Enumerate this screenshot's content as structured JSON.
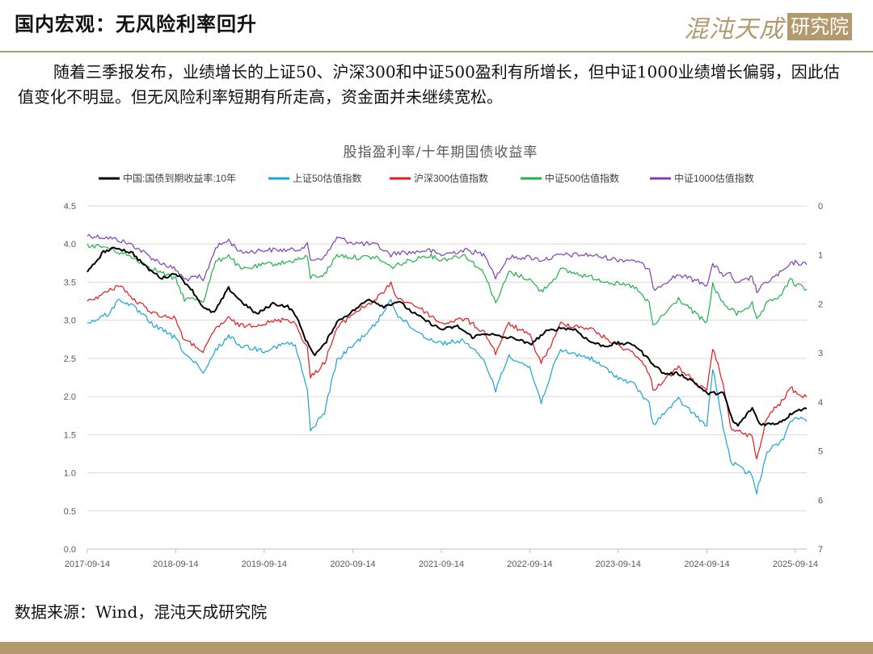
{
  "header": {
    "title": "国内宏观：无风险利率回升",
    "logo_text": "混沌天成",
    "logo_box_text": "研究院"
  },
  "intro_text": "随着三季报发布，业绩增长的上证50、沪深300和中证500盈利有所增长，但中证1000业绩增长偏弱，因此估值变化不明显。但无风险利率短期有所走高，资金面并未继续宽松。",
  "source_text": "数据来源：Wind，混沌天成研究院",
  "chart_data": {
    "type": "line",
    "title": "股指盈利率/十年期国债收益率",
    "x_tick_labels": [
      "2017-09-14",
      "2018-09-14",
      "2019-09-14",
      "2020-09-14",
      "2021-09-14",
      "2022-09-14",
      "2023-09-14",
      "2024-09-14",
      "2025-09-14"
    ],
    "x_range": [
      "2017-09-14",
      "2025-10-31"
    ],
    "left_axis": {
      "min": 0,
      "max": 4.5,
      "ticks": [
        "0.0",
        "0.5",
        "1.0",
        "1.5",
        "2.0",
        "2.5",
        "3.0",
        "3.5",
        "4.0",
        "4.5"
      ]
    },
    "right_axis": {
      "min": 0,
      "max": 7,
      "reversed": true,
      "ticks": [
        "0",
        "1",
        "2",
        "3",
        "4",
        "5",
        "6",
        "7"
      ]
    },
    "grid": true,
    "legend_position": "top",
    "series": [
      {
        "name": "中国:国债到期收益率:10年",
        "color": "#000000",
        "axis": "left",
        "points": [
          [
            "2017-09-14",
            3.62
          ],
          [
            "2017-11-20",
            3.9
          ],
          [
            "2018-01-15",
            3.95
          ],
          [
            "2018-03-20",
            3.88
          ],
          [
            "2018-05-20",
            3.68
          ],
          [
            "2018-07-20",
            3.55
          ],
          [
            "2018-09-14",
            3.62
          ],
          [
            "2018-11-15",
            3.42
          ],
          [
            "2019-01-10",
            3.15
          ],
          [
            "2019-02-20",
            3.1
          ],
          [
            "2019-04-20",
            3.42
          ],
          [
            "2019-06-10",
            3.25
          ],
          [
            "2019-08-15",
            3.08
          ],
          [
            "2019-10-20",
            3.22
          ],
          [
            "2019-12-20",
            3.18
          ],
          [
            "2020-01-20",
            3.08
          ],
          [
            "2020-03-10",
            2.7
          ],
          [
            "2020-04-10",
            2.55
          ],
          [
            "2020-05-20",
            2.68
          ],
          [
            "2020-07-10",
            2.98
          ],
          [
            "2020-09-14",
            3.12
          ],
          [
            "2020-11-20",
            3.28
          ],
          [
            "2021-01-20",
            3.18
          ],
          [
            "2021-03-20",
            3.25
          ],
          [
            "2021-05-20",
            3.1
          ],
          [
            "2021-07-20",
            2.98
          ],
          [
            "2021-09-14",
            2.88
          ],
          [
            "2021-11-20",
            2.92
          ],
          [
            "2022-01-20",
            2.78
          ],
          [
            "2022-03-20",
            2.83
          ],
          [
            "2022-05-20",
            2.78
          ],
          [
            "2022-07-20",
            2.76
          ],
          [
            "2022-09-14",
            2.68
          ],
          [
            "2022-11-20",
            2.85
          ],
          [
            "2023-01-20",
            2.9
          ],
          [
            "2023-03-20",
            2.88
          ],
          [
            "2023-05-20",
            2.72
          ],
          [
            "2023-07-20",
            2.66
          ],
          [
            "2023-09-14",
            2.7
          ],
          [
            "2023-11-20",
            2.68
          ],
          [
            "2024-01-20",
            2.48
          ],
          [
            "2024-03-20",
            2.3
          ],
          [
            "2024-05-20",
            2.3
          ],
          [
            "2024-07-20",
            2.2
          ],
          [
            "2024-09-14",
            2.04
          ],
          [
            "2024-11-20",
            2.05
          ],
          [
            "2024-12-31",
            1.67
          ],
          [
            "2025-01-20",
            1.62
          ],
          [
            "2025-03-20",
            1.85
          ],
          [
            "2025-04-20",
            1.64
          ],
          [
            "2025-06-20",
            1.64
          ],
          [
            "2025-08-01",
            1.7
          ],
          [
            "2025-09-14",
            1.82
          ],
          [
            "2025-10-31",
            1.84
          ]
        ]
      },
      {
        "name": "上证50估值指数",
        "color": "#1aa3d6",
        "axis": "right",
        "points": [
          [
            "2017-09-14",
            2.4
          ],
          [
            "2017-12-10",
            2.2
          ],
          [
            "2018-01-25",
            1.9
          ],
          [
            "2018-03-20",
            2.05
          ],
          [
            "2018-06-20",
            2.45
          ],
          [
            "2018-09-14",
            2.7
          ],
          [
            "2018-10-20",
            3.0
          ],
          [
            "2018-12-20",
            3.3
          ],
          [
            "2019-01-05",
            3.45
          ],
          [
            "2019-02-25",
            2.95
          ],
          [
            "2019-04-20",
            2.65
          ],
          [
            "2019-06-10",
            2.85
          ],
          [
            "2019-09-14",
            2.95
          ],
          [
            "2019-12-20",
            2.8
          ],
          [
            "2020-01-20",
            2.85
          ],
          [
            "2020-03-10",
            3.75
          ],
          [
            "2020-03-23",
            4.6
          ],
          [
            "2020-05-20",
            4.2
          ],
          [
            "2020-07-10",
            3.15
          ],
          [
            "2020-09-14",
            2.85
          ],
          [
            "2020-12-20",
            2.4
          ],
          [
            "2021-02-18",
            1.9
          ],
          [
            "2021-03-20",
            2.25
          ],
          [
            "2021-05-20",
            2.5
          ],
          [
            "2021-07-20",
            2.7
          ],
          [
            "2021-09-14",
            2.8
          ],
          [
            "2021-12-20",
            2.75
          ],
          [
            "2022-03-15",
            3.2
          ],
          [
            "2022-04-26",
            3.75
          ],
          [
            "2022-06-20",
            3.05
          ],
          [
            "2022-09-14",
            3.3
          ],
          [
            "2022-10-31",
            4.0
          ],
          [
            "2022-12-20",
            3.3
          ],
          [
            "2023-01-20",
            2.95
          ],
          [
            "2023-05-20",
            3.1
          ],
          [
            "2023-09-14",
            3.5
          ],
          [
            "2023-11-20",
            3.65
          ],
          [
            "2024-01-20",
            4.05
          ],
          [
            "2024-02-05",
            4.45
          ],
          [
            "2024-05-20",
            3.95
          ],
          [
            "2024-09-14",
            4.5
          ],
          [
            "2024-10-08",
            3.3
          ],
          [
            "2024-11-20",
            4.5
          ],
          [
            "2024-12-20",
            5.2
          ],
          [
            "2025-01-15",
            5.3
          ],
          [
            "2025-03-20",
            5.5
          ],
          [
            "2025-04-08",
            5.85
          ],
          [
            "2025-05-20",
            5.0
          ],
          [
            "2025-07-20",
            4.8
          ],
          [
            "2025-08-25",
            4.4
          ],
          [
            "2025-09-14",
            4.3
          ],
          [
            "2025-10-31",
            4.4
          ]
        ]
      },
      {
        "name": "沪深300估值指数",
        "color": "#e31a1c",
        "axis": "right",
        "points": [
          [
            "2017-09-14",
            1.95
          ],
          [
            "2017-12-10",
            1.75
          ],
          [
            "2018-01-25",
            1.6
          ],
          [
            "2018-03-20",
            1.9
          ],
          [
            "2018-06-20",
            2.2
          ],
          [
            "2018-09-14",
            2.3
          ],
          [
            "2018-10-20",
            2.75
          ],
          [
            "2018-12-20",
            2.9
          ],
          [
            "2019-01-05",
            3.0
          ],
          [
            "2019-02-25",
            2.5
          ],
          [
            "2019-04-20",
            2.3
          ],
          [
            "2019-06-10",
            2.45
          ],
          [
            "2019-09-14",
            2.4
          ],
          [
            "2019-12-20",
            2.3
          ],
          [
            "2020-01-20",
            2.4
          ],
          [
            "2020-03-10",
            2.9
          ],
          [
            "2020-03-23",
            3.5
          ],
          [
            "2020-05-20",
            3.2
          ],
          [
            "2020-07-10",
            2.5
          ],
          [
            "2020-09-14",
            2.2
          ],
          [
            "2020-12-20",
            1.9
          ],
          [
            "2021-02-18",
            1.6
          ],
          [
            "2021-03-20",
            1.9
          ],
          [
            "2021-05-20",
            2.0
          ],
          [
            "2021-07-20",
            2.2
          ],
          [
            "2021-09-14",
            2.4
          ],
          [
            "2021-12-20",
            2.3
          ],
          [
            "2022-03-15",
            2.6
          ],
          [
            "2022-04-26",
            3.0
          ],
          [
            "2022-06-20",
            2.4
          ],
          [
            "2022-09-14",
            2.65
          ],
          [
            "2022-10-31",
            3.2
          ],
          [
            "2022-12-20",
            2.75
          ],
          [
            "2023-01-20",
            2.4
          ],
          [
            "2023-05-20",
            2.5
          ],
          [
            "2023-09-14",
            2.85
          ],
          [
            "2023-11-20",
            3.0
          ],
          [
            "2024-01-20",
            3.4
          ],
          [
            "2024-02-05",
            3.75
          ],
          [
            "2024-05-20",
            3.3
          ],
          [
            "2024-09-14",
            3.8
          ],
          [
            "2024-10-08",
            2.9
          ],
          [
            "2024-11-20",
            3.6
          ],
          [
            "2024-12-20",
            4.5
          ],
          [
            "2025-01-15",
            4.6
          ],
          [
            "2025-03-20",
            4.7
          ],
          [
            "2025-04-08",
            5.2
          ],
          [
            "2025-05-20",
            4.3
          ],
          [
            "2025-07-20",
            4.0
          ],
          [
            "2025-08-25",
            3.7
          ],
          [
            "2025-09-14",
            3.8
          ],
          [
            "2025-10-31",
            3.9
          ]
        ]
      },
      {
        "name": "中证500估值指数",
        "color": "#1fb24a",
        "axis": "right",
        "points": [
          [
            "2017-09-14",
            0.8
          ],
          [
            "2017-12-10",
            0.85
          ],
          [
            "2018-01-25",
            0.95
          ],
          [
            "2018-03-20",
            1.05
          ],
          [
            "2018-06-20",
            1.3
          ],
          [
            "2018-09-14",
            1.5
          ],
          [
            "2018-10-20",
            1.9
          ],
          [
            "2018-12-20",
            1.9
          ],
          [
            "2019-01-05",
            1.95
          ],
          [
            "2019-02-25",
            1.15
          ],
          [
            "2019-04-20",
            1.0
          ],
          [
            "2019-06-10",
            1.3
          ],
          [
            "2019-09-14",
            1.2
          ],
          [
            "2019-12-20",
            1.15
          ],
          [
            "2020-01-20",
            1.1
          ],
          [
            "2020-03-10",
            1.05
          ],
          [
            "2020-03-23",
            1.45
          ],
          [
            "2020-05-20",
            1.4
          ],
          [
            "2020-07-10",
            1.0
          ],
          [
            "2020-09-14",
            1.05
          ],
          [
            "2020-12-20",
            1.05
          ],
          [
            "2021-02-18",
            1.25
          ],
          [
            "2021-03-20",
            1.2
          ],
          [
            "2021-05-20",
            1.1
          ],
          [
            "2021-07-20",
            1.0
          ],
          [
            "2021-09-14",
            1.1
          ],
          [
            "2021-12-20",
            1.0
          ],
          [
            "2022-03-15",
            1.4
          ],
          [
            "2022-04-26",
            2.0
          ],
          [
            "2022-06-20",
            1.35
          ],
          [
            "2022-09-14",
            1.5
          ],
          [
            "2022-10-31",
            1.75
          ],
          [
            "2022-12-20",
            1.5
          ],
          [
            "2023-01-20",
            1.3
          ],
          [
            "2023-05-20",
            1.45
          ],
          [
            "2023-09-14",
            1.6
          ],
          [
            "2023-11-20",
            1.65
          ],
          [
            "2024-01-20",
            2.0
          ],
          [
            "2024-02-05",
            2.45
          ],
          [
            "2024-05-20",
            1.9
          ],
          [
            "2024-09-14",
            2.4
          ],
          [
            "2024-10-08",
            1.6
          ],
          [
            "2024-11-20",
            2.0
          ],
          [
            "2024-12-20",
            2.1
          ],
          [
            "2025-01-15",
            2.2
          ],
          [
            "2025-03-20",
            2.0
          ],
          [
            "2025-04-08",
            2.35
          ],
          [
            "2025-05-20",
            2.0
          ],
          [
            "2025-07-20",
            1.8
          ],
          [
            "2025-08-25",
            1.5
          ],
          [
            "2025-09-14",
            1.6
          ],
          [
            "2025-10-31",
            1.7
          ]
        ]
      },
      {
        "name": "中证1000估值指数",
        "color": "#7f3fb2",
        "axis": "right",
        "points": [
          [
            "2017-09-14",
            0.6
          ],
          [
            "2017-12-10",
            0.65
          ],
          [
            "2018-01-25",
            0.7
          ],
          [
            "2018-03-20",
            0.8
          ],
          [
            "2018-06-20",
            1.1
          ],
          [
            "2018-09-14",
            1.3
          ],
          [
            "2018-10-20",
            1.5
          ],
          [
            "2018-12-20",
            1.45
          ],
          [
            "2019-01-05",
            1.55
          ],
          [
            "2019-02-25",
            0.85
          ],
          [
            "2019-04-20",
            0.7
          ],
          [
            "2019-06-10",
            0.95
          ],
          [
            "2019-09-14",
            0.9
          ],
          [
            "2019-12-20",
            0.9
          ],
          [
            "2020-01-20",
            0.9
          ],
          [
            "2020-03-10",
            0.8
          ],
          [
            "2020-03-23",
            1.1
          ],
          [
            "2020-05-20",
            1.05
          ],
          [
            "2020-07-10",
            0.65
          ],
          [
            "2020-09-14",
            0.75
          ],
          [
            "2020-12-20",
            0.8
          ],
          [
            "2021-02-18",
            1.0
          ],
          [
            "2021-03-20",
            0.95
          ],
          [
            "2021-05-20",
            0.95
          ],
          [
            "2021-07-20",
            0.9
          ],
          [
            "2021-09-14",
            1.0
          ],
          [
            "2021-12-20",
            0.9
          ],
          [
            "2022-03-15",
            1.0
          ],
          [
            "2022-04-26",
            1.45
          ],
          [
            "2022-06-20",
            1.05
          ],
          [
            "2022-09-14",
            1.05
          ],
          [
            "2022-10-31",
            1.1
          ],
          [
            "2022-12-20",
            1.05
          ],
          [
            "2023-01-20",
            1.0
          ],
          [
            "2023-05-20",
            1.0
          ],
          [
            "2023-09-14",
            1.1
          ],
          [
            "2023-11-20",
            1.1
          ],
          [
            "2024-01-20",
            1.3
          ],
          [
            "2024-02-05",
            1.7
          ],
          [
            "2024-05-20",
            1.4
          ],
          [
            "2024-09-14",
            1.6
          ],
          [
            "2024-10-08",
            1.2
          ],
          [
            "2024-11-20",
            1.4
          ],
          [
            "2024-12-20",
            1.4
          ],
          [
            "2025-01-15",
            1.6
          ],
          [
            "2025-03-20",
            1.45
          ],
          [
            "2025-04-08",
            1.75
          ],
          [
            "2025-05-20",
            1.55
          ],
          [
            "2025-07-20",
            1.35
          ],
          [
            "2025-08-25",
            1.2
          ],
          [
            "2025-09-14",
            1.15
          ],
          [
            "2025-10-31",
            1.2
          ]
        ]
      }
    ]
  }
}
